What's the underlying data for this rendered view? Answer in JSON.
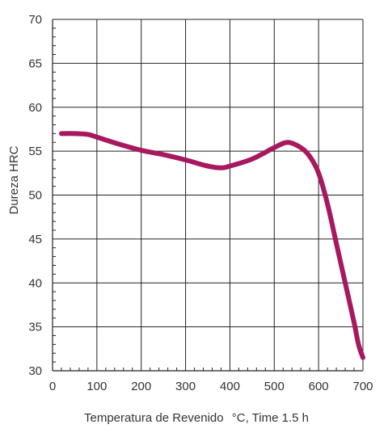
{
  "chart_data": {
    "type": "line",
    "xlabel": "Temperatura de Revenido",
    "xlabel_unit": "°C, Time 1.5 h",
    "ylabel": "Dureza HRC",
    "xlim": [
      0,
      700
    ],
    "ylim": [
      30,
      70
    ],
    "x_ticks": [
      0,
      100,
      200,
      300,
      400,
      500,
      600,
      700
    ],
    "y_ticks": [
      30,
      35,
      40,
      45,
      50,
      55,
      60,
      65,
      70
    ],
    "grid": true,
    "minor_x_ticks_per_major": 4,
    "minor_y_ticks_per_major": 4,
    "series": [
      {
        "color": "#a8185f",
        "x": [
          20,
          50,
          80,
          100,
          150,
          200,
          250,
          300,
          350,
          380,
          400,
          450,
          500,
          530,
          560,
          580,
          600,
          620,
          640,
          660,
          680,
          690,
          700
        ],
        "y": [
          57.0,
          57.0,
          56.9,
          56.6,
          55.8,
          55.1,
          54.6,
          54.0,
          53.3,
          53.1,
          53.3,
          54.1,
          55.4,
          56.0,
          55.4,
          54.4,
          52.5,
          49.0,
          44.5,
          40.0,
          35.5,
          33.0,
          31.5
        ]
      }
    ]
  }
}
